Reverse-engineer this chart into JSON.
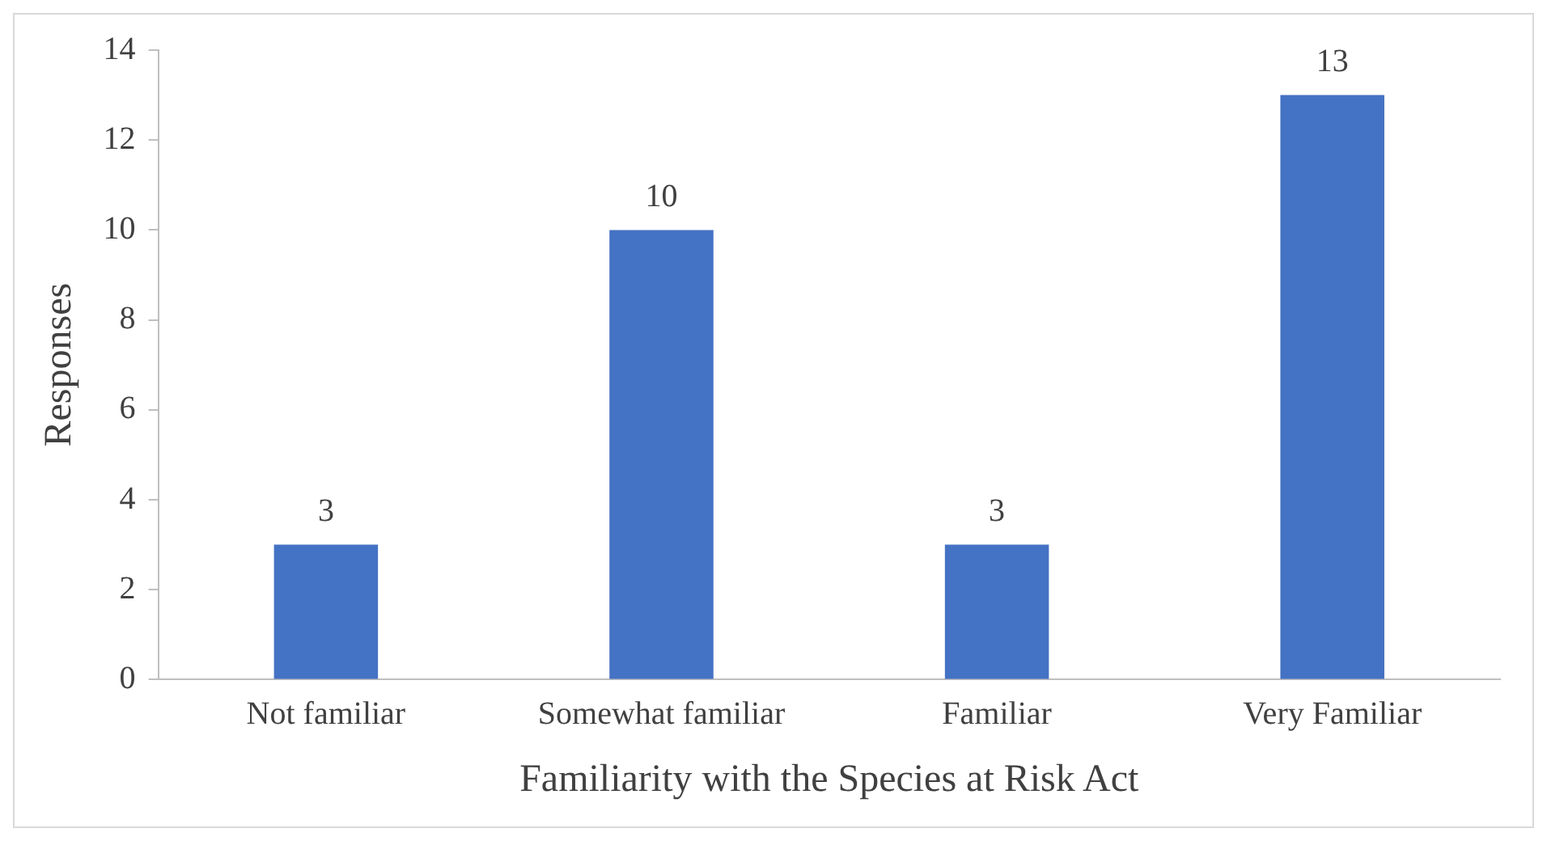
{
  "chart_data": {
    "type": "bar",
    "categories": [
      "Not familiar",
      "Somewhat familiar",
      "Familiar",
      "Very Familiar"
    ],
    "values": [
      3,
      10,
      3,
      13
    ],
    "color": "#4472c4",
    "xlabel": "Familiarity with the Species at Risk Act",
    "ylabel": "Responses",
    "ylim": [
      0,
      14
    ],
    "yticks": [
      0,
      2,
      4,
      6,
      8,
      10,
      12,
      14
    ],
    "grid": false,
    "legend": false,
    "data_labels": true
  }
}
